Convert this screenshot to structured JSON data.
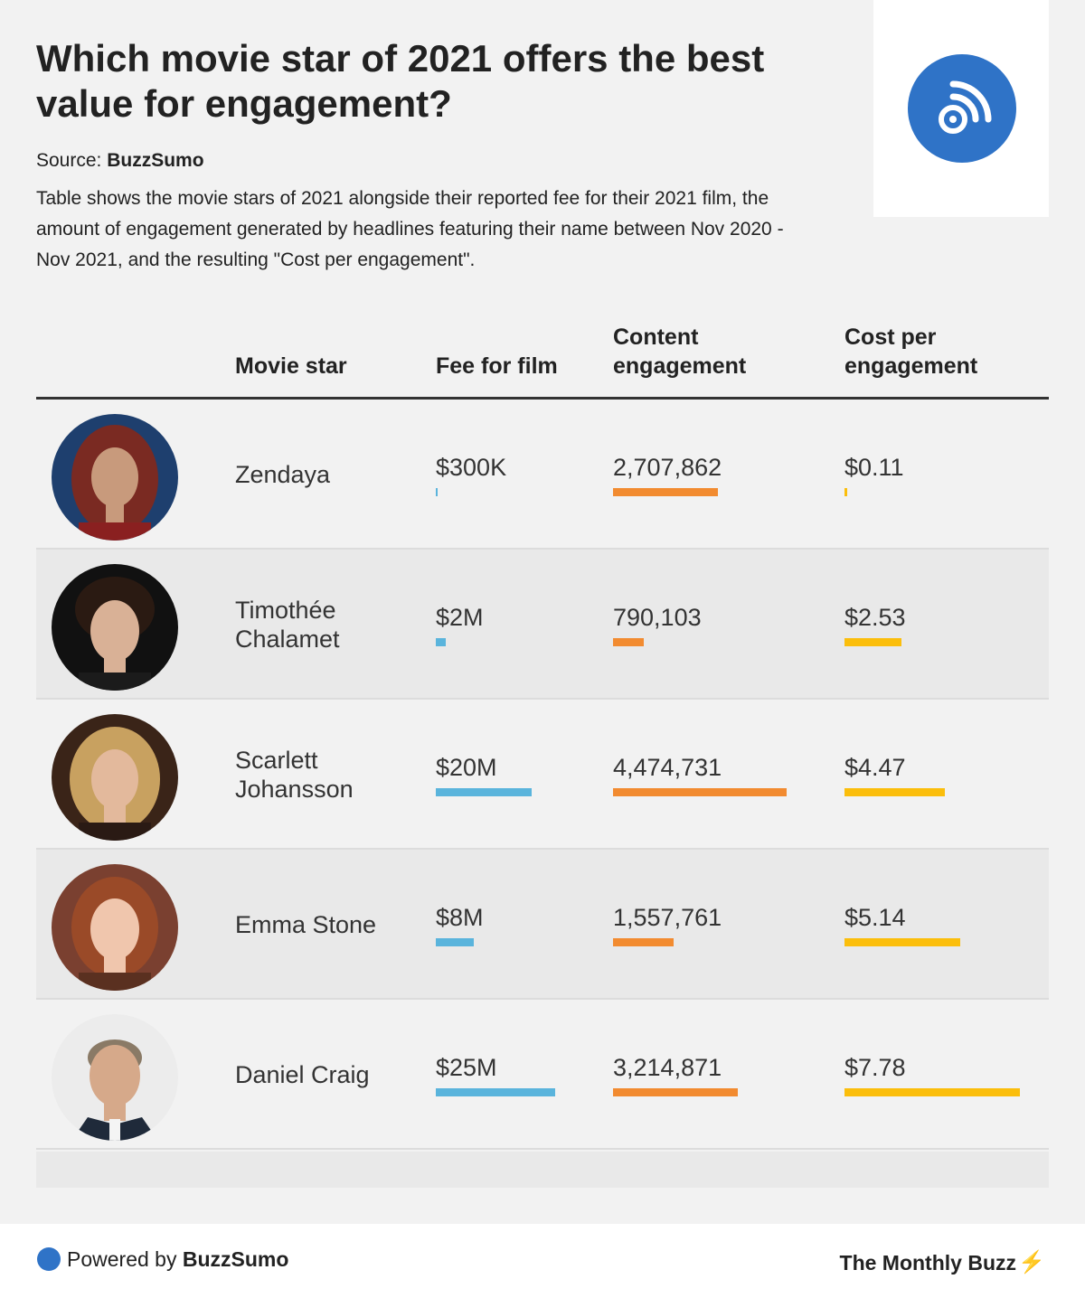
{
  "title": "Which movie star of 2021 offers the best value for engagement?",
  "source": {
    "label": "Source:",
    "name": "BuzzSumo"
  },
  "description": "Table shows the movie stars of 2021 alongside their reported fee for their 2021 film, the amount of engagement generated by headlines featuring their name between Nov 2020 - Nov 2021, and the resulting \"Cost per engagement\".",
  "logo": {
    "icon": "rss-feed-icon",
    "color": "#2f73c7"
  },
  "colors": {
    "fee": "#5ab4dc",
    "engagement": "#f28b30",
    "cost": "#fbbe0c"
  },
  "columns": {
    "star": "Movie star",
    "fee": "Fee for film",
    "engagement": "Content engagement",
    "cost": "Cost per engagement"
  },
  "chart_data": {
    "type": "table",
    "columns": [
      "Movie star",
      "Fee for film",
      "Content engagement",
      "Cost per engagement"
    ],
    "rows": [
      {
        "star": "Zendaya",
        "fee_label": "$300K",
        "fee": 300000,
        "engagement_label": "2,707,862",
        "engagement": 2707862,
        "cost_label": "$0.11",
        "cost": 0.11,
        "photo": "portrait-photo"
      },
      {
        "star": "Timothée Chalamet",
        "fee_label": "$2M",
        "fee": 2000000,
        "engagement_label": "790,103",
        "engagement": 790103,
        "cost_label": "$2.53",
        "cost": 2.53,
        "photo": "portrait-photo"
      },
      {
        "star": "Scarlett Johansson",
        "fee_label": "$20M",
        "fee": 20000000,
        "engagement_label": "4,474,731",
        "engagement": 4474731,
        "cost_label": "$4.47",
        "cost": 4.47,
        "photo": "portrait-photo"
      },
      {
        "star": "Emma Stone",
        "fee_label": "$8M",
        "fee": 8000000,
        "engagement_label": "1,557,761",
        "engagement": 1557761,
        "cost_label": "$5.14",
        "cost": 5.14,
        "photo": "portrait-photo"
      },
      {
        "star": "Daniel Craig",
        "fee_label": "$25M",
        "fee": 25000000,
        "engagement_label": "3,214,871",
        "engagement": 3214871,
        "cost_label": "$7.78",
        "cost": 7.78,
        "photo": "portrait-photo"
      }
    ]
  },
  "footer": {
    "powered_prefix": "Powered by",
    "powered_brand": "BuzzSumo",
    "newsletter": "The Monthly Buzz",
    "bolt_icon": "lightning-bolt-icon"
  }
}
